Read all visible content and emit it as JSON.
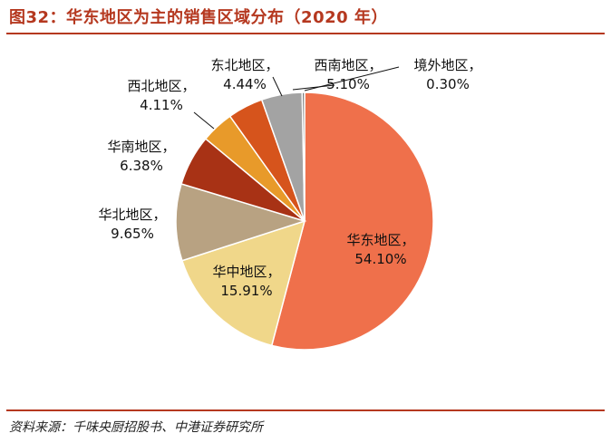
{
  "header": {
    "title": "图32：华东地区为主的销售区域分布（2020 年）"
  },
  "footer": {
    "source": "资料来源：千味央厨招股书、中港证券研究所"
  },
  "chart_data": {
    "type": "pie",
    "title": "图32：华东地区为主的销售区域分布（2020 年）",
    "slices": [
      {
        "label": "华东地区",
        "value": 54.1,
        "value_label": "54.10%",
        "color": "#ef704b"
      },
      {
        "label": "华中地区",
        "value": 15.91,
        "value_label": "15.91%",
        "color": "#f0d78a"
      },
      {
        "label": "华北地区",
        "value": 9.65,
        "value_label": "9.65%",
        "color": "#b8a282"
      },
      {
        "label": "华南地区",
        "value": 6.38,
        "value_label": "6.38%",
        "color": "#a83215"
      },
      {
        "label": "西北地区",
        "value": 4.11,
        "value_label": "4.11%",
        "color": "#e89a2a"
      },
      {
        "label": "东北地区",
        "value": 4.44,
        "value_label": "4.44%",
        "color": "#d6541c"
      },
      {
        "label": "西南地区",
        "value": 5.1,
        "value_label": "5.10%",
        "color": "#a3a3a3"
      },
      {
        "label": "境外地区",
        "value": 0.3,
        "value_label": "0.30%",
        "color": "#6e6e6e"
      }
    ],
    "start": "12 o'clock",
    "direction": "clockwise",
    "legend": "none"
  }
}
